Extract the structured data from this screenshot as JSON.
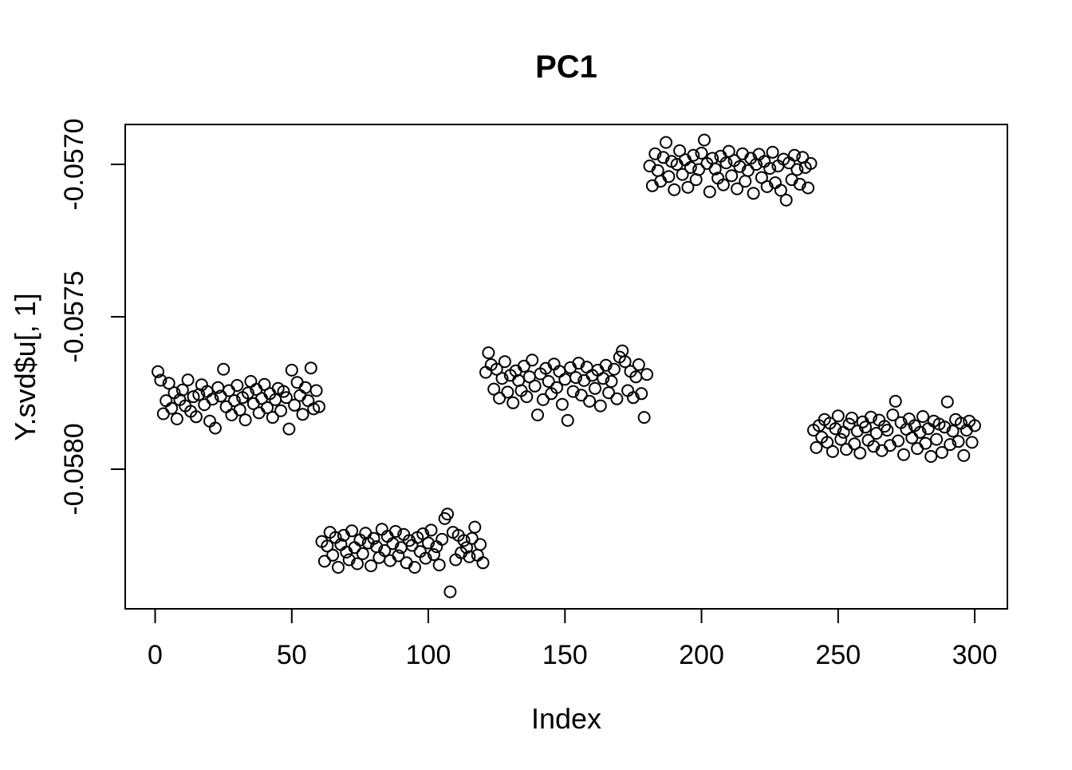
{
  "chart_data": {
    "type": "scatter",
    "title": "PC1",
    "xlabel": "Index",
    "ylabel": "Y.svd$u[, 1]",
    "marker": "open-circle",
    "point_color": "#000000",
    "frame_color": "#000000",
    "background": "#ffffff",
    "grid": false,
    "legend": null,
    "x_ticks": [
      0,
      50,
      100,
      150,
      200,
      250,
      300
    ],
    "y_ticks": [
      -0.057,
      -0.0575,
      -0.058
    ],
    "y_tick_labels": [
      "-0.0570",
      "-0.0575",
      "-0.0580"
    ],
    "xlim": [
      -10.96,
      311.96
    ],
    "ylim": [
      -0.058458,
      -0.056869
    ],
    "x_description": "Index 1..300, five consecutive groups of 60 points",
    "y_unit_note": "y = (mean_e6 + dev_e6) * 1e-6",
    "clusters": [
      {
        "x_start": 1,
        "mean_e6": -57780,
        "dev_e6": [
          100,
          72,
          -38,
          5,
          62,
          -20,
          31,
          -55,
          8,
          40,
          -12,
          73,
          -30,
          18,
          -48,
          25,
          57,
          -8,
          35,
          -62,
          10,
          -85,
          48,
          20,
          108,
          -15,
          38,
          -42,
          5,
          55,
          -25,
          15,
          -58,
          30,
          68,
          -5,
          42,
          -35,
          12,
          58,
          -18,
          28,
          -50,
          8,
          45,
          -28,
          35,
          15,
          -88,
          105,
          -10,
          65,
          22,
          -40,
          48,
          5,
          112,
          -22,
          38,
          -15
        ]
      },
      {
        "x_start": 61,
        "mean_e6": -58262,
        "dev_e6": [
          25,
          -40,
          10,
          55,
          -20,
          38,
          -60,
          15,
          45,
          -10,
          -35,
          60,
          5,
          -48,
          30,
          -15,
          52,
          20,
          -55,
          35,
          8,
          -28,
          65,
          -5,
          42,
          -38,
          18,
          58,
          -22,
          5,
          48,
          -45,
          28,
          12,
          -60,
          38,
          -8,
          50,
          -30,
          20,
          62,
          -18,
          8,
          -52,
          32,
          100,
          115,
          -140,
          55,
          -35,
          45,
          -12,
          28,
          5,
          -25,
          35,
          72,
          -20,
          15,
          -45
        ]
      },
      {
        "x_start": 121,
        "mean_e6": -57717,
        "dev_e6": [
          35,
          99,
          60,
          -20,
          45,
          -50,
          15,
          70,
          -30,
          25,
          -65,
          40,
          8,
          -25,
          55,
          -45,
          20,
          75,
          -10,
          -105,
          30,
          -55,
          48,
          5,
          -35,
          62,
          -15,
          38,
          -70,
          12,
          -123,
          50,
          -28,
          18,
          65,
          -40,
          8,
          52,
          -60,
          25,
          -18,
          42,
          -75,
          15,
          58,
          -32,
          5,
          45,
          -52,
          85,
          105,
          70,
          -25,
          38,
          -48,
          20,
          60,
          -35,
          -113,
          28
        ]
      },
      {
        "x_start": 181,
        "mean_e6": -57025,
        "dev_e6": [
          20,
          -45,
          60,
          5,
          -30,
          48,
          97,
          -15,
          35,
          -58,
          25,
          70,
          -8,
          40,
          -50,
          15,
          55,
          -25,
          8,
          62,
          105,
          28,
          -65,
          45,
          10,
          -20,
          52,
          -42,
          30,
          68,
          -12,
          38,
          -55,
          18,
          60,
          -30,
          5,
          45,
          -70,
          25,
          58,
          -18,
          35,
          -48,
          12,
          65,
          -35,
          20,
          -60,
          42,
          -92,
          30,
          -25,
          55,
          8,
          -40,
          48,
          15,
          -52,
          28
        ]
      },
      {
        "x_start": 241,
        "mean_e6": -57887,
        "dev_e6": [
          15,
          -42,
          30,
          -8,
          50,
          -25,
          38,
          -55,
          20,
          62,
          -15,
          8,
          -48,
          35,
          55,
          -30,
          12,
          -60,
          42,
          25,
          -18,
          58,
          -38,
          5,
          48,
          -52,
          28,
          15,
          -35,
          65,
          110,
          -20,
          40,
          -65,
          18,
          52,
          -10,
          30,
          -45,
          8,
          60,
          -28,
          20,
          -71,
          45,
          -15,
          35,
          -58,
          25,
          108,
          -32,
          12,
          50,
          -22,
          38,
          -68,
          15,
          45,
          -25,
          30
        ]
      }
    ]
  }
}
